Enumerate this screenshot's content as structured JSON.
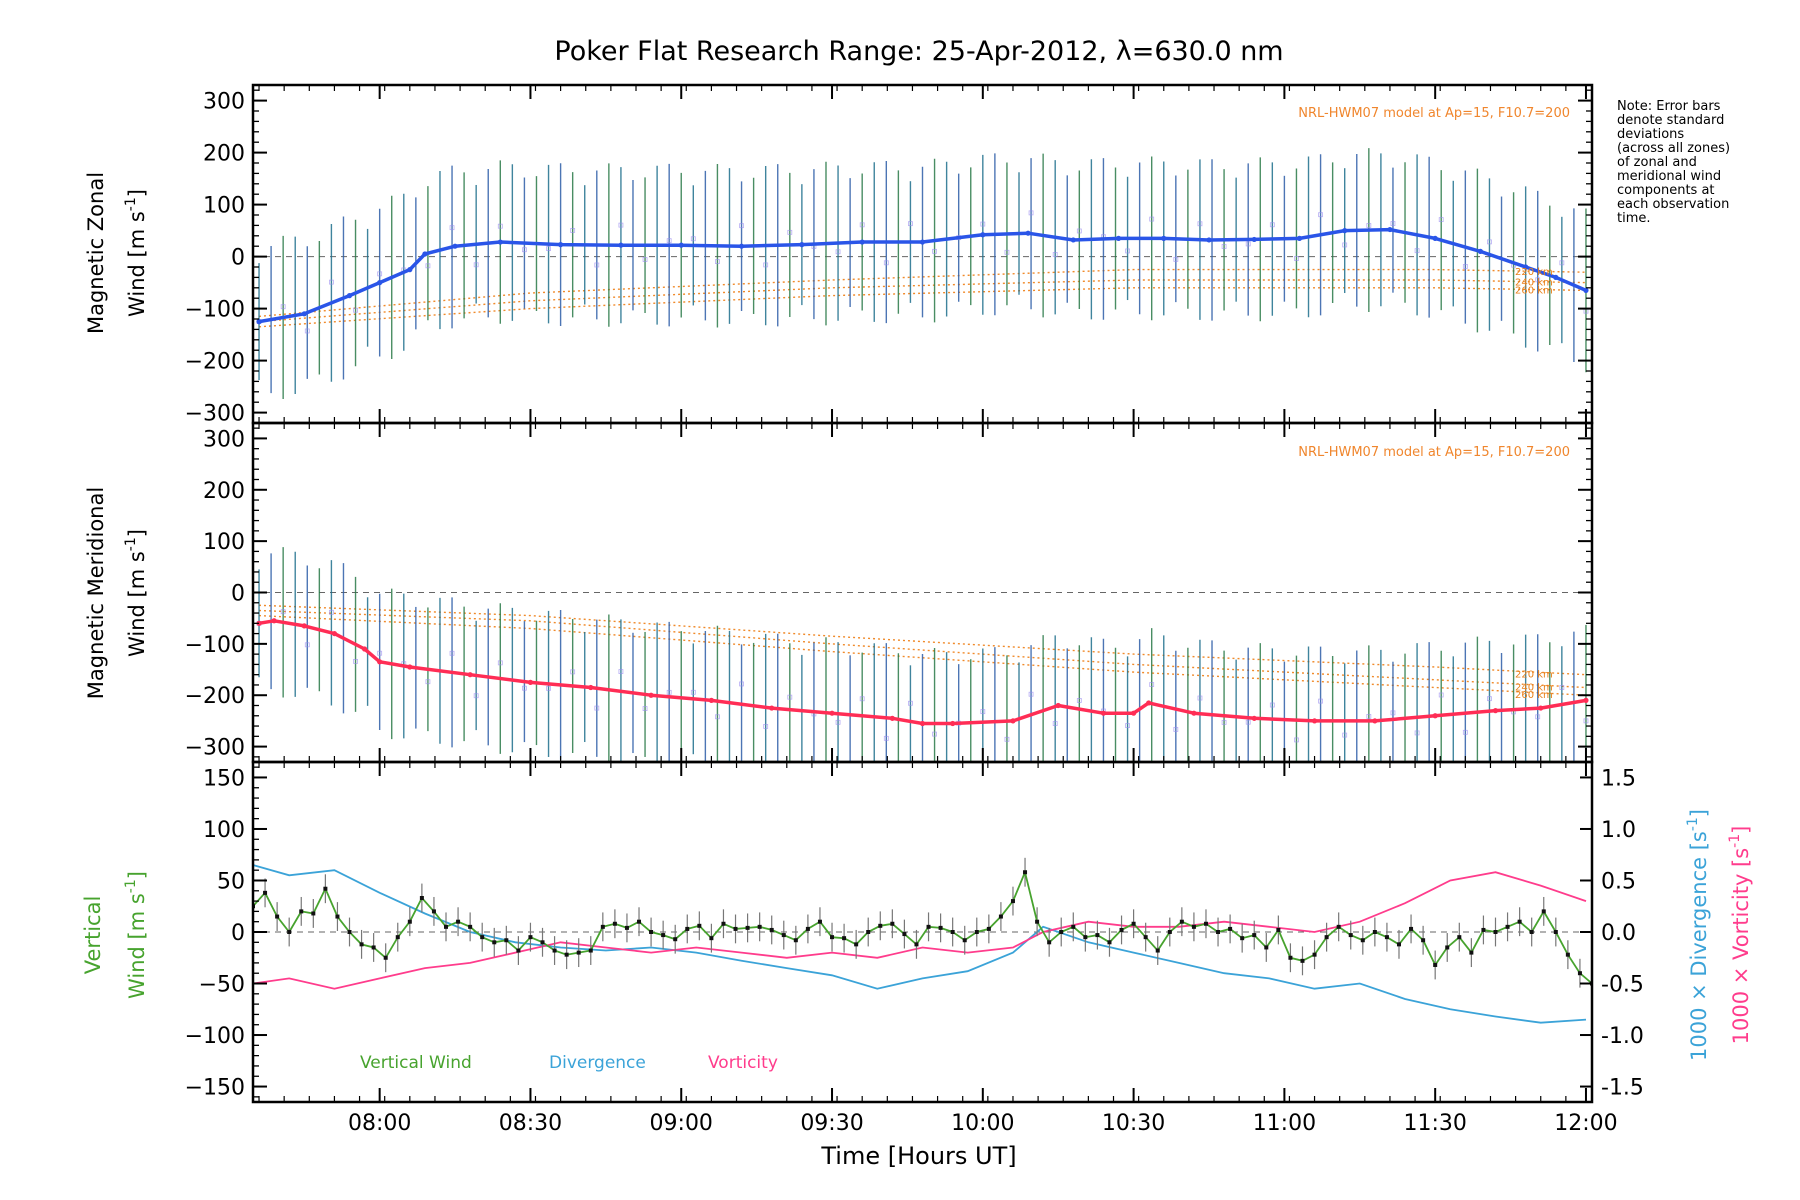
{
  "chart_data": {
    "title": "Poker Flat Research Range: 25-Apr-2012, λ=630.0 nm",
    "note_lines": [
      "Note: Error bars",
      "denote standard",
      "deviations",
      "(across all zones)",
      "of zonal and",
      "meridional wind",
      "components at",
      "each observation",
      "time."
    ],
    "xlabel": "Time [Hours UT]",
    "x_ticks": [
      "08:00",
      "08:30",
      "09:00",
      "09:30",
      "10:00",
      "10:30",
      "11:00",
      "11:30",
      "12:00"
    ],
    "x_tick_hours": [
      8.0,
      8.5,
      9.0,
      9.5,
      10.0,
      10.5,
      11.0,
      11.5,
      12.0
    ],
    "xlim": [
      7.58,
      12.02
    ],
    "panels": [
      {
        "id": "zonal",
        "type": "line",
        "ylabel_line1": "Magnetic Zonal",
        "ylabel_line2": "Wind [m s",
        "ylabel_sup": "-1",
        "ylabel_close": "]",
        "ylim": [
          -320,
          330
        ],
        "y_ticks": [
          300,
          200,
          100,
          0,
          -100,
          -200,
          -300
        ],
        "model_note": "NRL-HWM07 model at Ap=15, F10.7=200",
        "model_labels": [
          "220 km",
          "240 km",
          "260 km"
        ],
        "color": "#2a55e8",
        "errbar": 150,
        "series": {
          "name": "Magnetic Zonal Wind",
          "x": [
            7.6,
            7.75,
            7.9,
            8.0,
            8.1,
            8.15,
            8.25,
            8.4,
            8.6,
            8.8,
            9.0,
            9.2,
            9.4,
            9.6,
            9.8,
            10.0,
            10.15,
            10.3,
            10.45,
            10.6,
            10.75,
            10.9,
            11.05,
            11.2,
            11.35,
            11.5,
            11.65,
            11.8,
            11.9,
            12.0
          ],
          "y": [
            -125,
            -110,
            -75,
            -50,
            -25,
            5,
            20,
            28,
            23,
            22,
            22,
            20,
            23,
            28,
            28,
            42,
            45,
            32,
            35,
            35,
            32,
            33,
            35,
            50,
            52,
            35,
            10,
            -20,
            -40,
            -65
          ]
        },
        "model_curves": [
          {
            "altitude": "220 km",
            "x": [
              7.6,
              8.5,
              9.5,
              10.5,
              11.5,
              12.0
            ],
            "y": [
              -115,
              -70,
              -45,
              -25,
              -25,
              -30
            ]
          },
          {
            "altitude": "240 km",
            "x": [
              7.6,
              8.5,
              9.5,
              10.5,
              11.5,
              12.0
            ],
            "y": [
              -125,
              -85,
              -60,
              -45,
              -45,
              -50
            ]
          },
          {
            "altitude": "260 km",
            "x": [
              7.6,
              8.5,
              9.5,
              10.5,
              11.5,
              12.0
            ],
            "y": [
              -135,
              -100,
              -75,
              -60,
              -60,
              -65
            ]
          }
        ]
      },
      {
        "id": "meridional",
        "type": "line",
        "ylabel_line1": "Magnetic Meridional",
        "ylabel_line2": "Wind [m s",
        "ylabel_sup": "-1",
        "ylabel_close": "]",
        "ylim": [
          -330,
          330
        ],
        "y_ticks": [
          300,
          200,
          100,
          0,
          -100,
          -200,
          -300
        ],
        "model_note": "NRL-HWM07 model at Ap=15, F10.7=200",
        "model_labels": [
          "220 km",
          "240 km",
          "260 km"
        ],
        "color": "#ff2d55",
        "errbar": 140,
        "series": {
          "name": "Magnetic Meridional Wind",
          "x": [
            7.6,
            7.65,
            7.75,
            7.85,
            7.95,
            8.0,
            8.1,
            8.3,
            8.5,
            8.7,
            8.9,
            9.1,
            9.3,
            9.5,
            9.7,
            9.8,
            9.9,
            10.1,
            10.25,
            10.4,
            10.5,
            10.55,
            10.7,
            10.9,
            11.1,
            11.3,
            11.5,
            11.7,
            11.85,
            12.0
          ],
          "y": [
            -60,
            -55,
            -65,
            -80,
            -110,
            -135,
            -145,
            -160,
            -175,
            -185,
            -200,
            -210,
            -225,
            -235,
            -245,
            -255,
            -255,
            -250,
            -220,
            -235,
            -235,
            -215,
            -235,
            -245,
            -250,
            -250,
            -240,
            -230,
            -225,
            -210
          ]
        },
        "model_curves": [
          {
            "altitude": "220 km",
            "x": [
              7.6,
              8.5,
              9.5,
              10.5,
              11.5,
              12.0
            ],
            "y": [
              -25,
              -45,
              -85,
              -120,
              -145,
              -160
            ]
          },
          {
            "altitude": "240 km",
            "x": [
              7.6,
              8.5,
              9.5,
              10.5,
              11.5,
              12.0
            ],
            "y": [
              -35,
              -55,
              -100,
              -140,
              -170,
              -185
            ]
          },
          {
            "altitude": "260 km",
            "x": [
              7.6,
              8.5,
              9.5,
              10.5,
              11.5,
              12.0
            ],
            "y": [
              -45,
              -70,
              -115,
              -155,
              -185,
              -200
            ]
          }
        ]
      },
      {
        "id": "vertical",
        "type": "line",
        "ylabel_line1": "Vertical",
        "ylabel_line2": "Wind [m s",
        "ylabel_sup": "-1",
        "ylabel_close": "]",
        "ylim": [
          -165,
          165
        ],
        "y_ticks": [
          150,
          100,
          50,
          0,
          -50,
          -100,
          -150
        ],
        "right_ylim": [
          -1.65,
          1.65
        ],
        "right_ticks": [
          "1.5",
          "1.0",
          "0.5",
          "0.0",
          "-0.5",
          "-1.0",
          "-1.5"
        ],
        "right_tick_values": [
          1.5,
          1.0,
          0.5,
          0.0,
          -0.5,
          -1.0,
          -1.5
        ],
        "right_label_div": "1000 × Divergence [s",
        "right_label_vor": "1000 × Vorticity [s",
        "right_label_sup": "-1",
        "right_label_close": "]",
        "legend": [
          {
            "name": "Vertical Wind",
            "color": "#47a32e"
          },
          {
            "name": "Divergence",
            "color": "#3ba3d8"
          },
          {
            "name": "Vorticity",
            "color": "#ff3c8c"
          }
        ],
        "series": [
          {
            "name": "Vertical Wind",
            "x": [
              7.58,
              7.62,
              7.66,
              7.7,
              7.74,
              7.78,
              7.82,
              7.86,
              7.9,
              7.94,
              7.98,
              8.02,
              8.06,
              8.1,
              8.14,
              8.18,
              8.22,
              8.26,
              8.3,
              8.34,
              8.38,
              8.42,
              8.46,
              8.5,
              8.54,
              8.58,
              8.62,
              8.66,
              8.7,
              8.74,
              8.78,
              8.82,
              8.86,
              8.9,
              8.94,
              8.98,
              9.02,
              9.06,
              9.1,
              9.14,
              9.18,
              9.22,
              9.26,
              9.3,
              9.34,
              9.38,
              9.42,
              9.46,
              9.5,
              9.54,
              9.58,
              9.62,
              9.66,
              9.7,
              9.74,
              9.78,
              9.82,
              9.86,
              9.9,
              9.94,
              9.98,
              10.02,
              10.06,
              10.1,
              10.14,
              10.18,
              10.22,
              10.26,
              10.3,
              10.34,
              10.38,
              10.42,
              10.46,
              10.5,
              10.54,
              10.58,
              10.62,
              10.66,
              10.7,
              10.74,
              10.78,
              10.82,
              10.86,
              10.9,
              10.94,
              10.98,
              11.02,
              11.06,
              11.1,
              11.14,
              11.18,
              11.22,
              11.26,
              11.3,
              11.34,
              11.38,
              11.42,
              11.46,
              11.5,
              11.54,
              11.58,
              11.62,
              11.66,
              11.7,
              11.74,
              11.78,
              11.82,
              11.86,
              11.9,
              11.94,
              11.98,
              12.02
            ],
            "y": [
              25,
              38,
              15,
              0,
              20,
              18,
              42,
              15,
              0,
              -12,
              -15,
              -25,
              -5,
              10,
              33,
              20,
              5,
              10,
              5,
              -5,
              -10,
              -8,
              -18,
              -5,
              -10,
              -18,
              -22,
              -20,
              -18,
              5,
              8,
              4,
              10,
              0,
              -3,
              -7,
              3,
              6,
              -6,
              8,
              3,
              4,
              5,
              2,
              -3,
              -8,
              3,
              10,
              -5,
              -6,
              -12,
              0,
              6,
              8,
              -2,
              -12,
              5,
              4,
              0,
              -8,
              0,
              3,
              15,
              30,
              58,
              10,
              -10,
              0,
              5,
              -5,
              -3,
              -10,
              2,
              8,
              -5,
              -18,
              0,
              10,
              5,
              8,
              0,
              3,
              -6,
              -3,
              -15,
              2,
              -25,
              -28,
              -22,
              -5,
              5,
              -3,
              -8,
              0,
              -5,
              -12,
              3,
              -8,
              -32,
              -15,
              -5,
              -20,
              2,
              0,
              5,
              10,
              0,
              20,
              0,
              -22,
              -40,
              -50
            ],
            "error": 14
          },
          {
            "name": "Divergence",
            "x": [
              7.58,
              7.7,
              7.85,
              8.0,
              8.15,
              8.3,
              8.45,
              8.6,
              8.75,
              8.9,
              9.05,
              9.2,
              9.35,
              9.5,
              9.65,
              9.8,
              9.95,
              10.1,
              10.2,
              10.35,
              10.5,
              10.65,
              10.8,
              10.95,
              11.1,
              11.25,
              11.4,
              11.55,
              11.7,
              11.85,
              12.0
            ],
            "y": [
              0.65,
              0.55,
              0.6,
              0.38,
              0.18,
              0.0,
              -0.1,
              -0.15,
              -0.18,
              -0.15,
              -0.2,
              -0.28,
              -0.35,
              -0.42,
              -0.55,
              -0.45,
              -0.38,
              -0.2,
              0.05,
              -0.1,
              -0.2,
              -0.3,
              -0.4,
              -0.45,
              -0.55,
              -0.5,
              -0.65,
              -0.75,
              -0.82,
              -0.88,
              -0.85
            ]
          },
          {
            "name": "Vorticity",
            "x": [
              7.58,
              7.7,
              7.85,
              8.0,
              8.15,
              8.3,
              8.45,
              8.6,
              8.75,
              8.9,
              9.05,
              9.2,
              9.35,
              9.5,
              9.65,
              9.8,
              9.95,
              10.1,
              10.2,
              10.35,
              10.5,
              10.65,
              10.8,
              10.95,
              11.1,
              11.25,
              11.4,
              11.55,
              11.7,
              11.85,
              12.0
            ],
            "y": [
              -0.5,
              -0.45,
              -0.55,
              -0.45,
              -0.35,
              -0.3,
              -0.2,
              -0.1,
              -0.15,
              -0.2,
              -0.15,
              -0.2,
              -0.25,
              -0.2,
              -0.25,
              -0.15,
              -0.2,
              -0.15,
              0.0,
              0.1,
              0.05,
              0.05,
              0.1,
              0.05,
              0.0,
              0.1,
              0.28,
              0.5,
              0.58,
              0.45,
              0.3
            ]
          }
        ]
      }
    ]
  }
}
